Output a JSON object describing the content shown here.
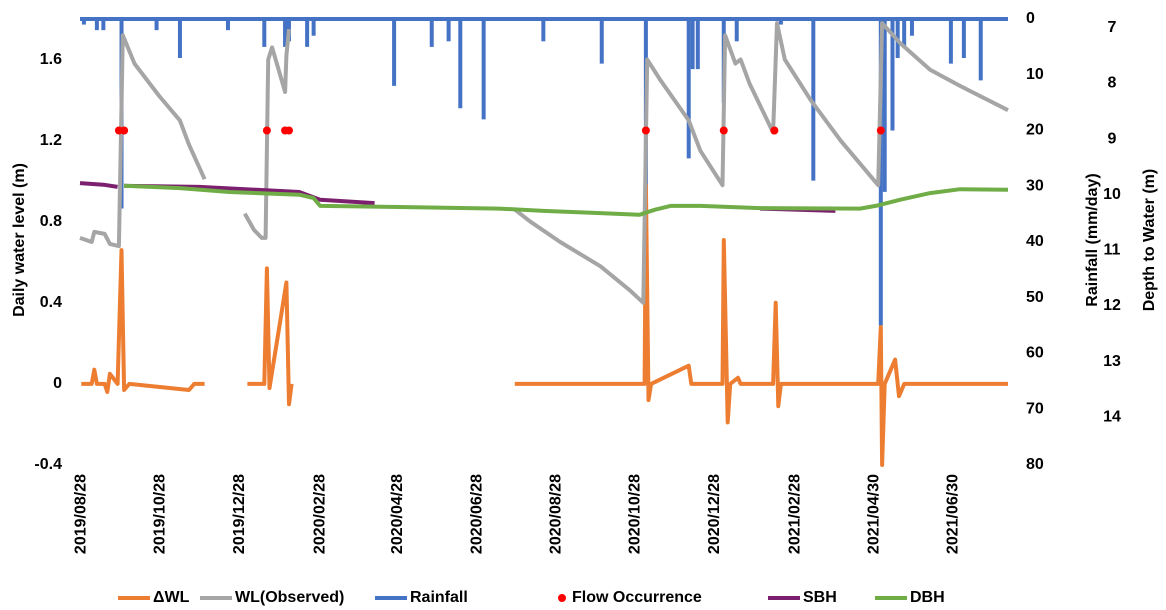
{
  "chart_data": {
    "type": "line",
    "ylabel": "Daily water level (m)",
    "y2label": "Rainfall (mm/day)",
    "y3label": "Depth to Water (m)",
    "xlim": [
      "2019/08/27",
      "2021/08/11"
    ],
    "xticks": [
      "2019/08/28",
      "2019/10/28",
      "2019/12/28",
      "2020/02/28",
      "2020/04/28",
      "2020/06/28",
      "2020/08/28",
      "2020/10/28",
      "2020/12/28",
      "2021/02/28",
      "2021/04/30",
      "2021/06/30"
    ],
    "ylim": [
      -0.4,
      1.8
    ],
    "yticks": [
      -0.4,
      0,
      0.4,
      0.8,
      1.2,
      1.6
    ],
    "y2lim": [
      80,
      0
    ],
    "y2ticks": [
      0,
      10,
      20,
      30,
      40,
      50,
      60,
      70,
      80
    ],
    "y3lim": [
      14.86,
      6.84
    ],
    "y3ticks": [
      7,
      8,
      9,
      10,
      11,
      12,
      13,
      14
    ],
    "grid": false,
    "legend": "bottom",
    "series": [
      {
        "name": "ΔWL",
        "type": "line",
        "color": "#ED7D31",
        "axis": "y",
        "x": [
          "2019/08/28",
          "2019/09/05",
          "2019/09/07",
          "2019/09/09",
          "2019/09/15",
          "2019/09/17",
          "2019/09/19",
          "2019/09/25",
          "2019/09/28",
          "2019/09/30",
          "2019/10/04",
          "2019/11/19",
          "2019/11/23",
          "2019/12/01",
          "2019/12/10",
          "2020/01/03",
          "2020/01/16",
          "2020/01/18",
          "2020/01/20",
          "2020/02/02",
          "2020/02/04",
          "2020/02/06",
          "2020/03/01",
          "2020/07/27",
          "2020/11/04",
          "2020/11/05",
          "2020/11/07",
          "2020/11/09",
          "2020/12/08",
          "2020/12/10",
          "2021/01/03",
          "2021/01/04",
          "2021/01/07",
          "2021/01/09",
          "2021/01/15",
          "2021/01/17",
          "2021/02/11",
          "2021/02/13",
          "2021/02/15",
          "2021/02/17",
          "2021/05/03",
          "2021/05/05",
          "2021/05/06",
          "2021/05/08",
          "2021/05/16",
          "2021/05/19",
          "2021/05/23",
          "2021/08/11"
        ],
        "values": [
          0,
          0,
          0.07,
          0,
          0,
          -0.04,
          0.05,
          0,
          0.66,
          -0.03,
          0,
          -0.03,
          0,
          0,
          null,
          0,
          0,
          0.57,
          -0.02,
          0.5,
          -0.1,
          0,
          null,
          0,
          0,
          0.98,
          -0.08,
          0,
          0.09,
          0,
          0,
          0.71,
          -0.19,
          0,
          0.03,
          0,
          0,
          0.4,
          -0.11,
          0,
          0,
          0.28,
          -0.4,
          0,
          0.12,
          -0.06,
          0,
          0
        ]
      },
      {
        "name": "WL(Observed)",
        "type": "line",
        "color": "#A5A5A5",
        "axis": "y",
        "x": [
          "2019/08/27",
          "2019/09/05",
          "2019/09/07",
          "2019/09/15",
          "2019/09/19",
          "2019/09/26",
          "2019/09/29",
          "2019/10/08",
          "2019/10/27",
          "2019/11/12",
          "2019/11/19",
          "2019/12/01",
          "2019/12/10",
          "2020/01/01",
          "2020/01/08",
          "2020/01/14",
          "2020/01/17",
          "2020/01/19",
          "2020/01/22",
          "2020/01/27",
          "2020/02/01",
          "2020/02/02",
          "2020/02/04",
          "2020/03/01",
          "2020/07/27",
          "2020/08/08",
          "2020/08/31",
          "2020/10/01",
          "2020/10/24",
          "2020/11/03",
          "2020/11/06",
          "2020/11/16",
          "2020/12/08",
          "2020/12/17",
          "2021/01/03",
          "2021/01/05",
          "2021/01/13",
          "2021/01/17",
          "2021/01/24",
          "2021/02/11",
          "2021/02/14",
          "2021/02/20",
          "2021/03/12",
          "2021/04/04",
          "2021/05/03",
          "2021/05/06",
          "2021/05/20",
          "2021/06/12",
          "2021/07/05",
          "2021/08/11"
        ],
        "values": [
          0.72,
          0.7,
          0.75,
          0.74,
          0.69,
          0.68,
          1.72,
          1.58,
          1.42,
          1.3,
          1.18,
          1.01,
          null,
          0.84,
          0.76,
          0.72,
          0.72,
          1.6,
          1.66,
          1.55,
          1.44,
          1.62,
          1.75,
          null,
          0.86,
          0.8,
          0.7,
          0.58,
          0.46,
          0.4,
          1.6,
          1.5,
          1.3,
          1.15,
          0.98,
          1.72,
          1.58,
          1.6,
          1.48,
          1.24,
          1.78,
          1.6,
          1.4,
          1.2,
          0.98,
          1.78,
          1.68,
          1.55,
          1.47,
          1.35
        ]
      },
      {
        "name": "Rainfall",
        "type": "bar",
        "color": "#4472C4",
        "axis": "y2",
        "x": [
          "2019/08/30",
          "2019/09/09",
          "2019/09/14",
          "2019/09/28",
          "2019/10/25",
          "2019/11/12",
          "2019/12/19",
          "2020/01/16",
          "2020/02/01",
          "2020/02/04",
          "2020/02/18",
          "2020/02/23",
          "2020/04/25",
          "2020/05/24",
          "2020/06/06",
          "2020/06/15",
          "2020/07/03",
          "2020/08/18",
          "2020/10/02",
          "2020/11/05",
          "2020/12/08",
          "2020/12/11",
          "2020/12/15",
          "2021/01/04",
          "2021/01/14",
          "2021/02/17",
          "2021/03/14",
          "2021/05/05",
          "2021/05/08",
          "2021/05/14",
          "2021/05/18",
          "2021/05/23",
          "2021/05/29",
          "2021/06/28",
          "2021/07/08",
          "2021/07/21"
        ],
        "values": [
          1,
          2,
          2,
          34,
          2,
          7,
          2,
          5,
          5,
          4,
          5,
          3,
          12,
          5,
          4,
          16,
          18,
          4,
          8,
          46,
          25,
          9,
          9,
          15,
          4,
          1,
          29,
          55,
          31,
          20,
          7,
          5,
          3,
          8,
          7,
          11
        ]
      },
      {
        "name": "Flow Occurrence",
        "type": "scatter",
        "color": "#FF0000",
        "axis": "y",
        "x": [
          "2019/09/26",
          "2019/09/30",
          "2020/01/18",
          "2020/02/01",
          "2020/02/04",
          "2020/11/05",
          "2021/01/04",
          "2021/02/12",
          "2021/05/05"
        ],
        "values": [
          1.25,
          1.25,
          1.25,
          1.25,
          1.25,
          1.25,
          1.25,
          1.25,
          1.25
        ]
      },
      {
        "name": "SBH",
        "type": "line",
        "color": "#7B1F6E",
        "axis": "y3",
        "x": [
          "2019/08/27",
          "2019/09/14",
          "2019/09/25",
          "2019/09/27",
          "2019/09/30",
          "2019/11/27",
          "2020/02/12",
          "2020/02/28",
          "2020/04/10",
          "2020/06/01",
          "2021/02/01",
          "2021/03/31"
        ],
        "values": [
          9.79,
          9.82,
          9.86,
          null,
          9.84,
          9.86,
          9.95,
          10.09,
          10.15,
          null,
          10.25,
          10.29
        ]
      },
      {
        "name": "DBH",
        "type": "line",
        "color": "#70AD47",
        "axis": "y3",
        "x": [
          "2019/09/30",
          "2019/11/12",
          "2019/12/20",
          "2020/02/12",
          "2020/02/23",
          "2020/02/28",
          "2020/04/29",
          "2020/07/15",
          "2020/08/18",
          "2020/10/01",
          "2020/10/31",
          "2020/11/12",
          "2020/11/24",
          "2020/12/17",
          "2021/02/01",
          "2021/04/19",
          "2021/05/01",
          "2021/05/20",
          "2021/06/12",
          "2021/07/05",
          "2021/08/11"
        ],
        "values": [
          9.84,
          9.88,
          9.95,
          10.0,
          10.06,
          10.2,
          10.22,
          10.25,
          10.29,
          10.33,
          10.36,
          10.27,
          10.2,
          10.2,
          10.24,
          10.25,
          10.2,
          10.09,
          9.97,
          9.9,
          9.91
        ]
      }
    ]
  }
}
